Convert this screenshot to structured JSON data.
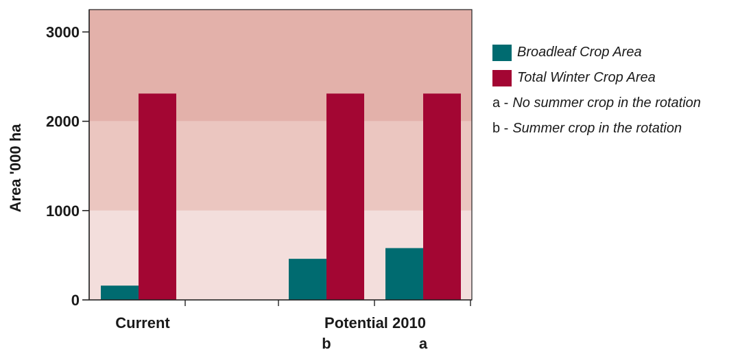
{
  "chart_data": {
    "type": "bar",
    "ylabel": "Area '000 ha",
    "ylim": [
      0,
      3000
    ],
    "yticks": [
      0,
      1000,
      2000,
      3000
    ],
    "category_labels": [
      "Current",
      "Potential 2010"
    ],
    "sub_labels": [
      "b",
      "a"
    ],
    "bar_groups": [
      {
        "group": "Current",
        "sub": ""
      },
      {
        "group": "Potential 2010",
        "sub": "b"
      },
      {
        "group": "Potential 2010",
        "sub": "a"
      }
    ],
    "series": [
      {
        "name": "Broadleaf Crop Area",
        "color": "#006b70",
        "values": [
          160,
          460,
          580
        ]
      },
      {
        "name": "Total Winter Crop Area",
        "color": "#a30633",
        "values": [
          2310,
          2310,
          2310
        ]
      }
    ],
    "background_bands": [
      {
        "from": 0,
        "to": 1000,
        "color": "#f3dedc"
      },
      {
        "from": 1000,
        "to": 2000,
        "color": "#ebc6c0"
      },
      {
        "from": 2000,
        "to": 3000,
        "color": "#e3b1aa"
      }
    ],
    "notes": [
      {
        "key": "a -",
        "text": "No summer crop in the rotation"
      },
      {
        "key": "b -",
        "text": "Summer crop in the rotation"
      }
    ],
    "legend_position": "right"
  }
}
